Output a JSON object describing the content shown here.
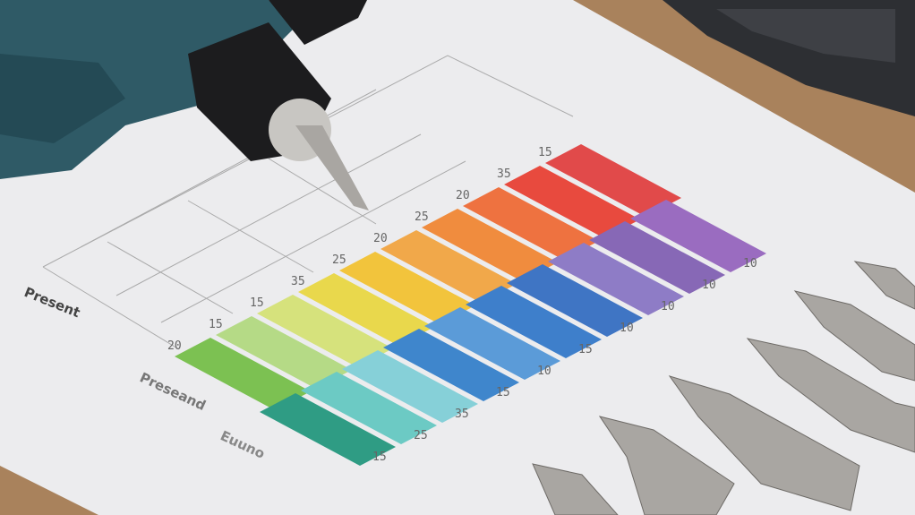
{
  "paper_labels": {
    "axis_label_upper": "Present",
    "axis_label_lower_1": "Preseand",
    "axis_label_lower_2": "Euuno"
  },
  "swatch_rows": [
    {
      "colors": [
        "#7cc152",
        "#b5da86",
        "#d6e27c",
        "#e9d84c",
        "#f2c43c",
        "#f1a84a",
        "#f08c3e",
        "#ee7240",
        "#e84a3e",
        "#e14a4a"
      ],
      "labels": [
        "20",
        "15",
        "15",
        "35",
        "25",
        "20",
        "25",
        "20",
        "35",
        "15"
      ]
    },
    {
      "colors": [
        "#2f9c84",
        "#6ccac4",
        "#86d0d8",
        "#3f86cc",
        "#5b9bd8",
        "#3e7fcb",
        "#3f75c4",
        "#8e7cc6",
        "#8768b6",
        "#9a6cc0"
      ],
      "labels": [
        "15",
        "25",
        "35",
        "15",
        "10",
        "15",
        "10",
        "10",
        "10",
        "10"
      ]
    }
  ],
  "colors": {
    "paper": "#ececee",
    "table_wood": "#a9825c",
    "drill_body": "#2f5a66",
    "drill_chuck": "#1c1c1e",
    "metal": "#a9a6a2"
  }
}
